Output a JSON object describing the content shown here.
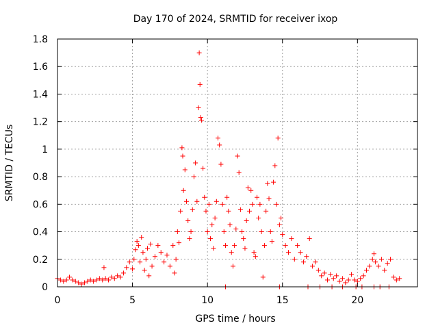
{
  "chart_data": {
    "type": "scatter",
    "title": "Day 170 of 2024, SRMTID for receiver ixop",
    "xlabel": "GPS time / hours",
    "ylabel": "SRMTID / TECUs",
    "xlim": [
      0,
      24
    ],
    "ylim": [
      0,
      1.8
    ],
    "xticks": [
      0,
      5,
      10,
      15,
      20
    ],
    "xtick_labels": [
      "0",
      "5",
      "10",
      "15",
      "20"
    ],
    "yticks": [
      0,
      0.2,
      0.4,
      0.6,
      0.8,
      1.0,
      1.2,
      1.4,
      1.6,
      1.8
    ],
    "ytick_labels": [
      "0",
      "0.2",
      "0.4",
      "0.6",
      "0.8",
      "1",
      "1.2",
      "1.4",
      "1.6",
      "1.8"
    ],
    "grid": true,
    "marker": "+",
    "color": "#ff0000",
    "series": [
      {
        "name": "SRMTID",
        "points": [
          [
            0.0,
            0.06
          ],
          [
            0.2,
            0.05
          ],
          [
            0.4,
            0.04
          ],
          [
            0.6,
            0.05
          ],
          [
            0.8,
            0.07
          ],
          [
            1.0,
            0.05
          ],
          [
            1.2,
            0.04
          ],
          [
            1.4,
            0.03
          ],
          [
            1.6,
            0.02
          ],
          [
            1.8,
            0.03
          ],
          [
            2.0,
            0.04
          ],
          [
            2.2,
            0.05
          ],
          [
            2.4,
            0.04
          ],
          [
            2.6,
            0.05
          ],
          [
            2.8,
            0.06
          ],
          [
            3.0,
            0.05
          ],
          [
            3.1,
            0.14
          ],
          [
            3.2,
            0.06
          ],
          [
            3.4,
            0.05
          ],
          [
            3.6,
            0.07
          ],
          [
            3.8,
            0.06
          ],
          [
            4.0,
            0.08
          ],
          [
            4.2,
            0.07
          ],
          [
            4.4,
            0.1
          ],
          [
            4.6,
            0.14
          ],
          [
            4.8,
            0.18
          ],
          [
            5.0,
            0.13
          ],
          [
            5.1,
            0.2
          ],
          [
            5.2,
            0.27
          ],
          [
            5.3,
            0.33
          ],
          [
            5.4,
            0.3
          ],
          [
            5.5,
            0.18
          ],
          [
            5.6,
            0.36
          ],
          [
            5.7,
            0.25
          ],
          [
            5.8,
            0.12
          ],
          [
            5.9,
            0.2
          ],
          [
            6.0,
            0.28
          ],
          [
            6.1,
            0.08
          ],
          [
            6.2,
            0.31
          ],
          [
            6.3,
            0.15
          ],
          [
            6.5,
            0.22
          ],
          [
            6.7,
            0.3
          ],
          [
            6.9,
            0.25
          ],
          [
            7.1,
            0.18
          ],
          [
            7.3,
            0.23
          ],
          [
            7.5,
            0.15
          ],
          [
            7.7,
            0.3
          ],
          [
            7.8,
            0.1
          ],
          [
            7.9,
            0.2
          ],
          [
            8.0,
            0.4
          ],
          [
            8.1,
            0.32
          ],
          [
            8.2,
            0.55
          ],
          [
            8.3,
            1.01
          ],
          [
            8.35,
            0.95
          ],
          [
            8.4,
            0.7
          ],
          [
            8.5,
            0.85
          ],
          [
            8.6,
            0.62
          ],
          [
            8.7,
            0.48
          ],
          [
            8.8,
            0.35
          ],
          [
            8.9,
            0.4
          ],
          [
            9.0,
            0.56
          ],
          [
            9.1,
            0.8
          ],
          [
            9.2,
            0.9
          ],
          [
            9.3,
            0.62
          ],
          [
            9.4,
            1.3
          ],
          [
            9.45,
            1.7
          ],
          [
            9.5,
            1.47
          ],
          [
            9.55,
            1.23
          ],
          [
            9.6,
            1.21
          ],
          [
            9.7,
            0.86
          ],
          [
            9.8,
            0.65
          ],
          [
            9.9,
            0.55
          ],
          [
            10.0,
            0.4
          ],
          [
            10.1,
            0.6
          ],
          [
            10.2,
            0.35
          ],
          [
            10.3,
            0.45
          ],
          [
            10.4,
            0.28
          ],
          [
            10.5,
            0.5
          ],
          [
            10.6,
            0.62
          ],
          [
            10.7,
            1.08
          ],
          [
            10.8,
            1.03
          ],
          [
            10.9,
            0.89
          ],
          [
            11.0,
            0.6
          ],
          [
            11.1,
            0.4
          ],
          [
            11.2,
            0.3
          ],
          [
            11.3,
            0.65
          ],
          [
            11.4,
            0.55
          ],
          [
            11.5,
            0.45
          ],
          [
            11.6,
            0.25
          ],
          [
            11.7,
            0.15
          ],
          [
            11.8,
            0.3
          ],
          [
            11.9,
            0.42
          ],
          [
            12.0,
            0.95
          ],
          [
            12.1,
            0.83
          ],
          [
            12.2,
            0.56
          ],
          [
            12.3,
            0.4
          ],
          [
            12.4,
            0.35
          ],
          [
            12.5,
            0.28
          ],
          [
            12.6,
            0.48
          ],
          [
            12.7,
            0.72
          ],
          [
            12.8,
            0.55
          ],
          [
            12.9,
            0.7
          ],
          [
            13.0,
            0.6
          ],
          [
            13.1,
            0.25
          ],
          [
            13.2,
            0.22
          ],
          [
            13.3,
            0.65
          ],
          [
            13.4,
            0.5
          ],
          [
            13.5,
            0.6
          ],
          [
            13.6,
            0.4
          ],
          [
            13.7,
            0.07
          ],
          [
            13.8,
            0.3
          ],
          [
            13.9,
            0.55
          ],
          [
            14.0,
            0.75
          ],
          [
            14.1,
            0.64
          ],
          [
            14.2,
            0.4
          ],
          [
            14.3,
            0.33
          ],
          [
            14.4,
            0.76
          ],
          [
            14.5,
            0.88
          ],
          [
            14.6,
            0.6
          ],
          [
            14.7,
            1.08
          ],
          [
            14.8,
            0.45
          ],
          [
            14.9,
            0.5
          ],
          [
            15.0,
            0.38
          ],
          [
            15.2,
            0.3
          ],
          [
            15.4,
            0.25
          ],
          [
            15.6,
            0.35
          ],
          [
            15.8,
            0.2
          ],
          [
            16.0,
            0.3
          ],
          [
            16.2,
            0.25
          ],
          [
            16.4,
            0.18
          ],
          [
            16.6,
            0.22
          ],
          [
            16.8,
            0.35
          ],
          [
            17.0,
            0.15
          ],
          [
            17.2,
            0.18
          ],
          [
            17.4,
            0.12
          ],
          [
            17.6,
            0.08
          ],
          [
            17.8,
            0.1
          ],
          [
            18.0,
            0.05
          ],
          [
            18.2,
            0.09
          ],
          [
            18.4,
            0.06
          ],
          [
            18.6,
            0.08
          ],
          [
            18.8,
            0.04
          ],
          [
            19.0,
            0.06
          ],
          [
            19.2,
            0.03
          ],
          [
            19.4,
            0.05
          ],
          [
            19.6,
            0.09
          ],
          [
            19.8,
            0.05
          ],
          [
            20.0,
            0.04
          ],
          [
            20.2,
            0.06
          ],
          [
            20.4,
            0.08
          ],
          [
            20.6,
            0.12
          ],
          [
            20.8,
            0.15
          ],
          [
            21.0,
            0.2
          ],
          [
            21.1,
            0.24
          ],
          [
            21.2,
            0.18
          ],
          [
            21.4,
            0.15
          ],
          [
            21.6,
            0.2
          ],
          [
            21.8,
            0.12
          ],
          [
            22.0,
            0.17
          ],
          [
            22.2,
            0.2
          ],
          [
            22.4,
            0.07
          ],
          [
            22.6,
            0.05
          ],
          [
            22.8,
            0.06
          ],
          [
            11.2,
            0.0
          ],
          [
            14.8,
            0.0
          ],
          [
            16.7,
            0.0
          ],
          [
            17.5,
            0.0
          ],
          [
            18.3,
            0.0
          ],
          [
            19.0,
            0.0
          ],
          [
            19.9,
            0.0
          ],
          [
            20.3,
            0.0
          ],
          [
            21.1,
            0.0
          ],
          [
            21.5,
            0.0
          ],
          [
            22.1,
            0.0
          ]
        ]
      }
    ]
  }
}
